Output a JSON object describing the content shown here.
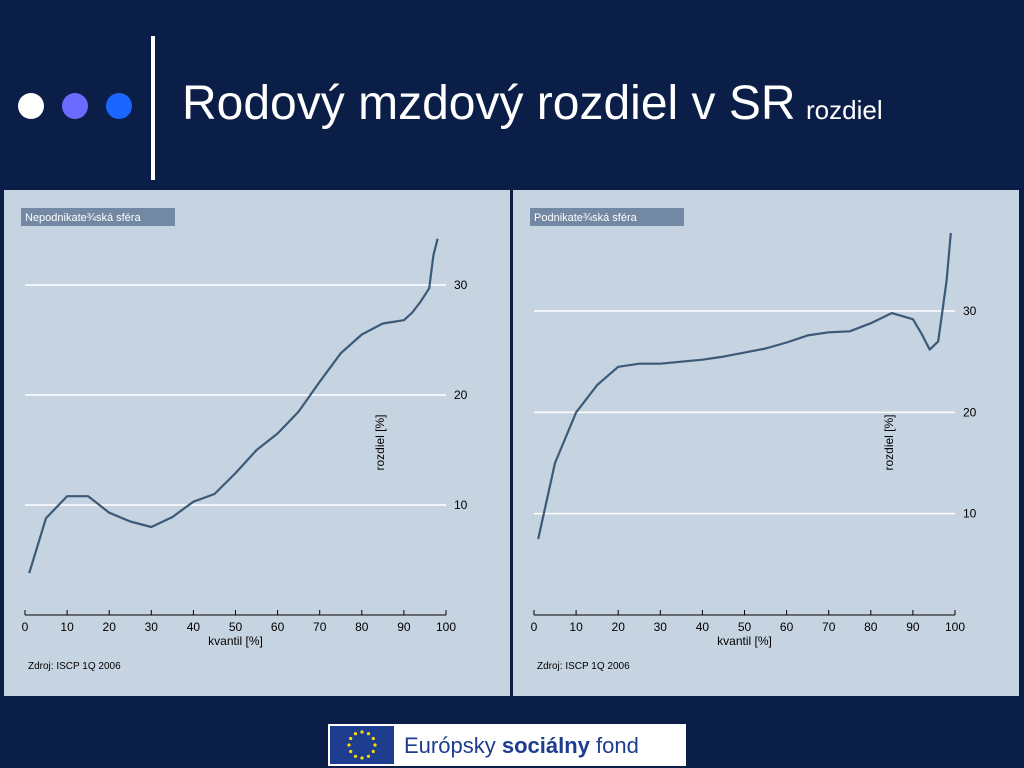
{
  "slide": {
    "title": "Rodový mzdový rozdiel v SR",
    "subtitle": "rozdiel",
    "bullet_colors": [
      "#ffffff",
      "#6b6bff",
      "#1a66ff"
    ]
  },
  "footer": {
    "text_prefix": "Európsky",
    "text_bold": "sociálny",
    "text_suffix": "fond",
    "logo": "eu-flag-icon"
  },
  "chart_data": [
    {
      "type": "line",
      "title": "Nepodnikate¾ská sféra",
      "xlabel": "kvantil [%]",
      "ylabel": "rozdiel [%]",
      "source": "Zdroj: ISCP 1Q 2006",
      "xlim": [
        0,
        100
      ],
      "ylim": [
        0,
        35
      ],
      "xticks": [
        "0",
        "10",
        "20",
        "30",
        "40",
        "50",
        "60",
        "70",
        "80",
        "90",
        "100"
      ],
      "yticks": [
        "10",
        "20",
        "30"
      ],
      "grid": true,
      "x": [
        1,
        5,
        10,
        15,
        20,
        25,
        30,
        35,
        40,
        45,
        50,
        55,
        60,
        65,
        70,
        75,
        80,
        85,
        90,
        92,
        94,
        96,
        97,
        98
      ],
      "y": [
        3.8,
        8.8,
        10.8,
        10.8,
        9.3,
        8.5,
        8.0,
        8.9,
        10.3,
        11.0,
        12.9,
        15.0,
        16.5,
        18.5,
        21.2,
        23.8,
        25.5,
        26.5,
        26.8,
        27.5,
        28.5,
        29.7,
        32.7,
        34.2
      ]
    },
    {
      "type": "line",
      "title": "Podnikate¾ská sféra",
      "xlabel": "kvantil [%]",
      "ylabel": "rozdiel [%]",
      "source": "Zdroj: ISCP 1Q 2006",
      "xlim": [
        0,
        100
      ],
      "ylim": [
        0,
        38
      ],
      "xticks": [
        "0",
        "10",
        "20",
        "30",
        "40",
        "50",
        "60",
        "70",
        "80",
        "90",
        "100"
      ],
      "yticks": [
        "10",
        "20",
        "30"
      ],
      "grid": true,
      "x": [
        1,
        5,
        10,
        15,
        20,
        25,
        30,
        35,
        40,
        45,
        50,
        55,
        60,
        65,
        70,
        75,
        80,
        85,
        90,
        92,
        94,
        96,
        98,
        99
      ],
      "y": [
        7.5,
        15.0,
        20.0,
        22.7,
        24.5,
        24.8,
        24.8,
        25.0,
        25.2,
        25.5,
        25.9,
        26.3,
        26.9,
        27.6,
        27.9,
        28.0,
        28.8,
        29.8,
        29.2,
        27.8,
        26.2,
        27.0,
        33.0,
        37.7
      ]
    }
  ]
}
